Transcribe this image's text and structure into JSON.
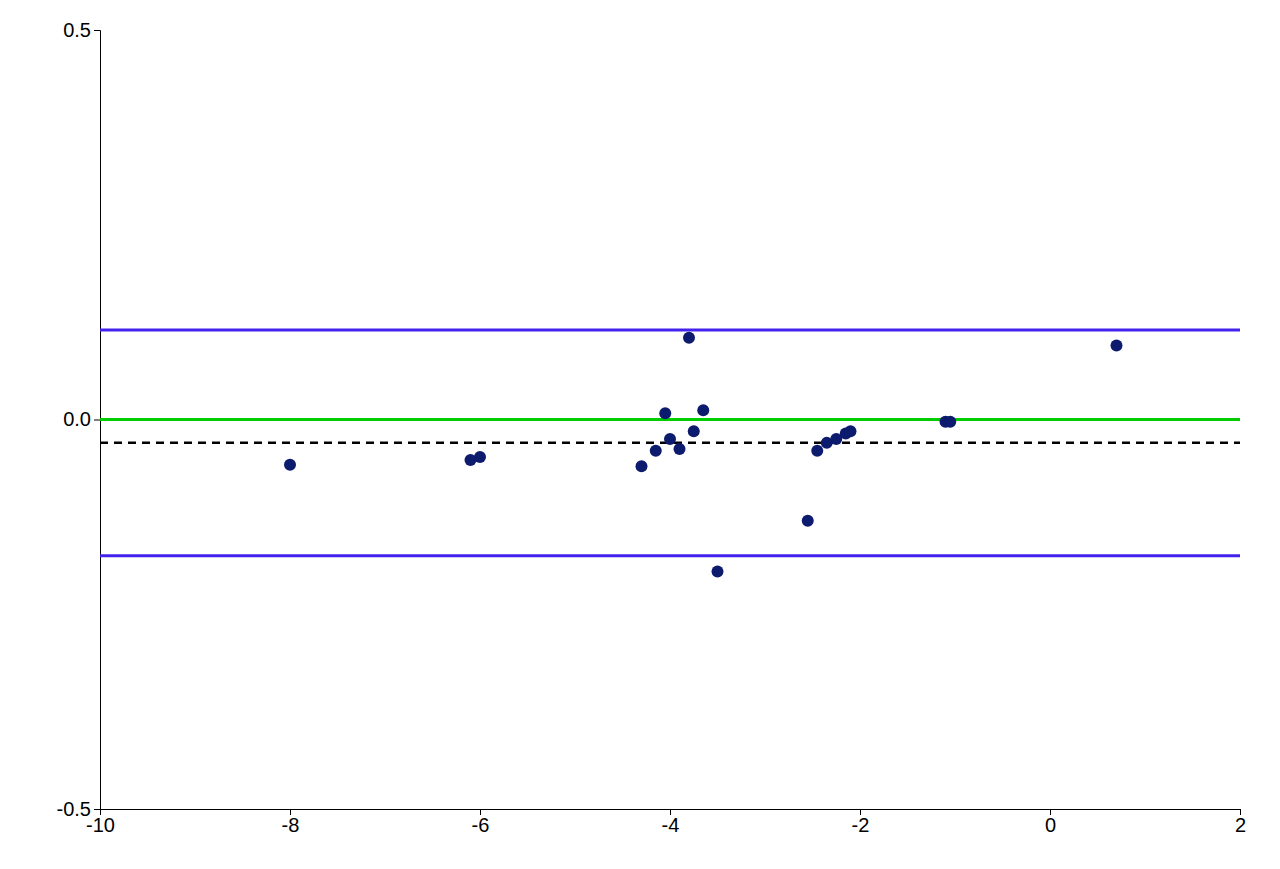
{
  "chart_data": {
    "type": "scatter",
    "x": [
      -8.0,
      -6.1,
      -6.0,
      -4.3,
      -4.15,
      -4.05,
      -4.0,
      -3.9,
      -3.8,
      -3.75,
      -3.65,
      -3.5,
      -2.55,
      -2.45,
      -2.35,
      -2.25,
      -2.15,
      -2.1,
      -1.1,
      -1.05,
      0.7
    ],
    "values": [
      -0.058,
      -0.052,
      -0.048,
      -0.06,
      -0.04,
      0.008,
      -0.025,
      -0.038,
      0.105,
      -0.015,
      0.012,
      -0.195,
      -0.13,
      -0.04,
      -0.03,
      -0.025,
      -0.018,
      -0.015,
      -0.003,
      -0.003,
      0.095
    ],
    "color": "#0d1b6e",
    "hlines": [
      {
        "y": 0.115,
        "color": "#4422ee",
        "line_style": "solid"
      },
      {
        "y": -0.175,
        "color": "#4422ee",
        "line_style": "solid"
      },
      {
        "y": 0.0,
        "color": "#00cc00",
        "line_style": "solid"
      },
      {
        "y": -0.03,
        "color": "#000000",
        "line_style": "dashed"
      }
    ],
    "xlim": [
      -10,
      2
    ],
    "ylim": [
      -0.5,
      0.5
    ],
    "xticks": [
      -10,
      -8,
      -6,
      -4,
      -2,
      0,
      2
    ],
    "yticks": [
      -0.5,
      {
        "value": 0,
        "label": "0.0"
      },
      0.5
    ],
    "grid": false
  }
}
